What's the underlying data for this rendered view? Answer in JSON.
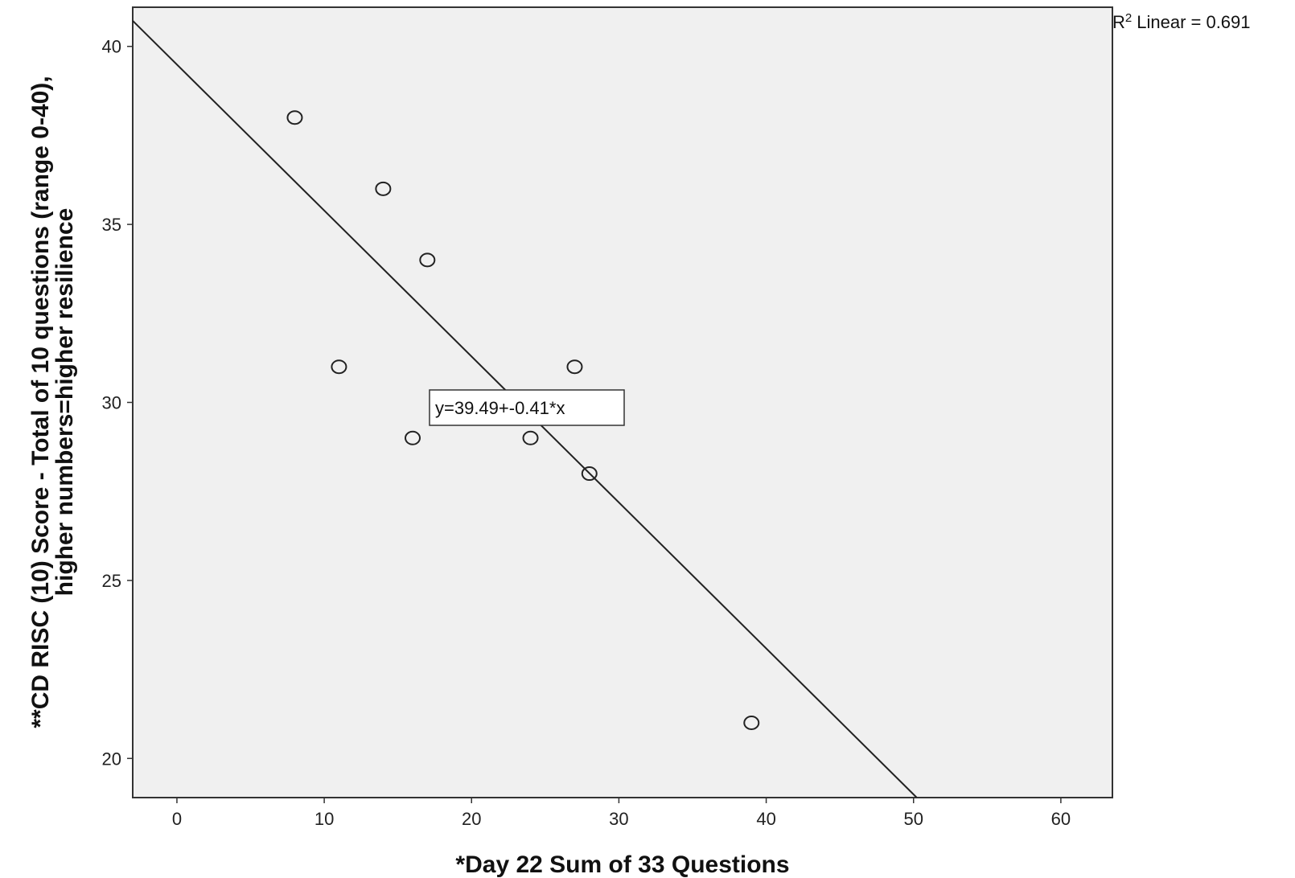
{
  "chart_data": {
    "type": "scatter",
    "xlabel": "*Day 22 Sum of 33 Questions",
    "ylabel_lines": [
      "**CD RISC (10) Score - Total of 10 questions (range 0-40),",
      "higher numbers=higher resilience"
    ],
    "xlim": [
      -3,
      63.5
    ],
    "ylim": [
      18.9,
      41.1
    ],
    "xticks": [
      0,
      10,
      20,
      30,
      40,
      50,
      60
    ],
    "yticks": [
      20,
      25,
      30,
      35,
      40
    ],
    "grid": false,
    "background": "#f0f0f0",
    "marker": "open-circle",
    "points": [
      {
        "x": 8,
        "y": 38
      },
      {
        "x": 14,
        "y": 36
      },
      {
        "x": 17,
        "y": 34
      },
      {
        "x": 11,
        "y": 31
      },
      {
        "x": 27,
        "y": 31
      },
      {
        "x": 16,
        "y": 29
      },
      {
        "x": 24,
        "y": 29
      },
      {
        "x": 28,
        "y": 28
      },
      {
        "x": 39,
        "y": 21
      }
    ],
    "fit_line": {
      "intercept": 39.49,
      "slope": -0.41,
      "equation_label": "y=39.49+-0.41*x",
      "r2_label": "Linear = 0.691",
      "r2_prefix": "R",
      "r2_superscript": "2"
    }
  }
}
